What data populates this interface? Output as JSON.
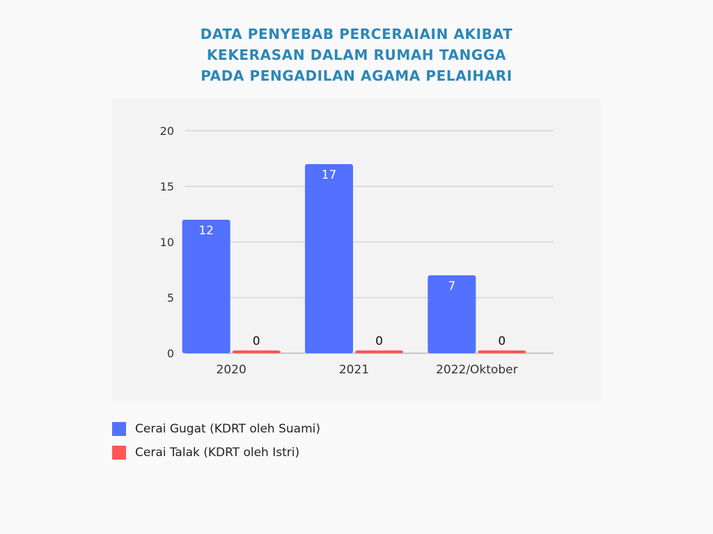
{
  "header": {
    "title_lines": [
      "DATA PENYEBAB PERCERAIAIN AKIBAT",
      "KEKERASAN DALAM RUMAH TANGGA",
      "PADA PENGADILAN AGAMA PELAIHARI"
    ]
  },
  "colors": {
    "title": "#2b87b9",
    "series_1": "#5271ff",
    "series_2": "#ff5757",
    "gridline": "#c4c4c4",
    "tick_text": "#333333"
  },
  "chart_data": {
    "type": "bar",
    "categories": [
      "2020",
      "2021",
      "2022/Oktober"
    ],
    "series": [
      {
        "name": "Cerai Gugat (KDRT oleh Suami)",
        "values": [
          12,
          17,
          7
        ],
        "color": "#5271ff"
      },
      {
        "name": "Cerai Talak (KDRT oleh Istri)",
        "values": [
          0,
          0,
          0
        ],
        "color": "#ff5757"
      }
    ],
    "y_ticks": [
      0,
      5,
      10,
      15,
      20
    ],
    "ylim": [
      0,
      20
    ],
    "grid": true,
    "data_labels": true,
    "legend_position": "bottom-left"
  }
}
